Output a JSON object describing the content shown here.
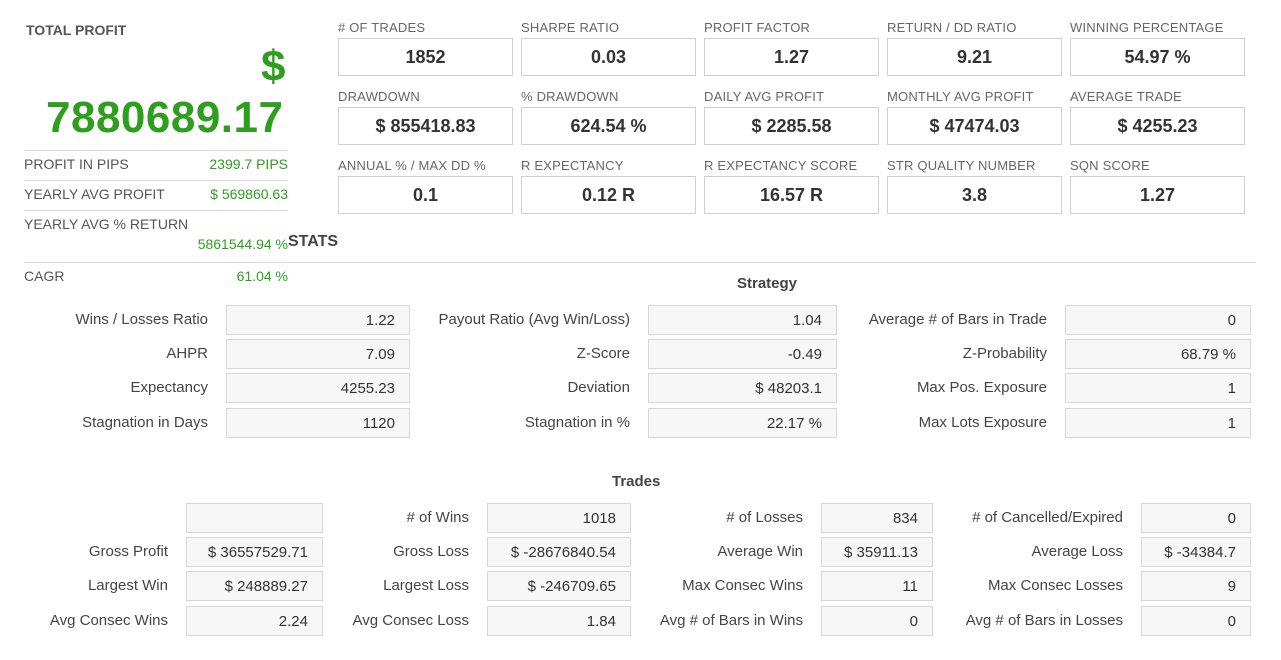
{
  "summary": {
    "title": "TOTAL PROFIT",
    "currency": "$",
    "total_profit": "7880689.17",
    "profit_in_pips_label": "PROFIT IN PIPS",
    "profit_in_pips": "2399.7 PIPS",
    "yearly_avg_profit_label": "YEARLY AVG PROFIT",
    "yearly_avg_profit": "$ 569860.63",
    "yearly_avg_return_label": "YEARLY AVG % RETURN",
    "yearly_avg_return": "5861544.94 %",
    "cagr_label": "CAGR",
    "cagr": "61.04 %",
    "stats_heading": "STATS"
  },
  "metrics": [
    {
      "label": "# OF TRADES",
      "value": "1852"
    },
    {
      "label": "SHARPE RATIO",
      "value": "0.03"
    },
    {
      "label": "PROFIT FACTOR",
      "value": "1.27"
    },
    {
      "label": "RETURN / DD RATIO",
      "value": "9.21"
    },
    {
      "label": "WINNING PERCENTAGE",
      "value": "54.97 %"
    },
    {
      "label": "DRAWDOWN",
      "value": "$ 855418.83"
    },
    {
      "label": "% DRAWDOWN",
      "value": "624.54 %"
    },
    {
      "label": "DAILY AVG PROFIT",
      "value": "$ 2285.58"
    },
    {
      "label": "MONTHLY AVG PROFIT",
      "value": "$ 47474.03"
    },
    {
      "label": "AVERAGE TRADE",
      "value": "$ 4255.23"
    },
    {
      "label": "ANNUAL % / MAX DD %",
      "value": "0.1"
    },
    {
      "label": "R EXPECTANCY",
      "value": "0.12 R"
    },
    {
      "label": "R EXPECTANCY SCORE",
      "value": "16.57 R"
    },
    {
      "label": "STR QUALITY NUMBER",
      "value": "3.8"
    },
    {
      "label": "SQN SCORE",
      "value": "1.27"
    }
  ],
  "strategy": {
    "title": "Strategy",
    "rows": [
      [
        {
          "label": "Wins / Losses Ratio",
          "value": "1.22"
        },
        {
          "label": "Payout Ratio (Avg Win/Loss)",
          "value": "1.04"
        },
        {
          "label": "Average # of Bars in Trade",
          "value": "0"
        }
      ],
      [
        {
          "label": "AHPR",
          "value": "7.09"
        },
        {
          "label": "Z-Score",
          "value": "-0.49"
        },
        {
          "label": "Z-Probability",
          "value": "68.79 %"
        }
      ],
      [
        {
          "label": "Expectancy",
          "value": "4255.23"
        },
        {
          "label": "Deviation",
          "value": "$ 48203.1"
        },
        {
          "label": "Max Pos. Exposure",
          "value": "1"
        }
      ],
      [
        {
          "label": "Stagnation in Days",
          "value": "1120"
        },
        {
          "label": "Stagnation in %",
          "value": "22.17 %"
        },
        {
          "label": "Max Lots Exposure",
          "value": "1"
        }
      ]
    ]
  },
  "trades": {
    "title": "Trades",
    "rows": [
      [
        {
          "label": "",
          "value": ""
        },
        {
          "label": "# of Wins",
          "value": "1018"
        },
        {
          "label": "# of Losses",
          "value": "834"
        },
        {
          "label": "# of Cancelled/Expired",
          "value": "0"
        }
      ],
      [
        {
          "label": "Gross Profit",
          "value": "$ 36557529.71"
        },
        {
          "label": "Gross Loss",
          "value": "$ -28676840.54"
        },
        {
          "label": "Average Win",
          "value": "$ 35911.13"
        },
        {
          "label": "Average Loss",
          "value": "$ -34384.7"
        }
      ],
      [
        {
          "label": "Largest Win",
          "value": "$ 248889.27"
        },
        {
          "label": "Largest Loss",
          "value": "$ -246709.65"
        },
        {
          "label": "Max Consec Wins",
          "value": "11"
        },
        {
          "label": "Max Consec Losses",
          "value": "9"
        }
      ],
      [
        {
          "label": "Avg Consec Wins",
          "value": "2.24"
        },
        {
          "label": "Avg Consec Loss",
          "value": "1.84"
        },
        {
          "label": "Avg # of Bars in Wins",
          "value": "0"
        },
        {
          "label": "Avg # of Bars in Losses",
          "value": "0"
        }
      ]
    ]
  }
}
